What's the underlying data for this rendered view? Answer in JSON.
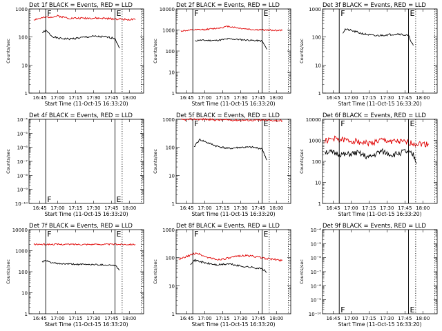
{
  "figure": {
    "xlabel": "Start Time (11-Oct-15 16:33:20)",
    "ylabel": "Counts/sec",
    "x_tick_labels": [
      "16:45",
      "17:00",
      "17:15",
      "17:30",
      "17:45",
      "18:00"
    ],
    "colors": {
      "events": "#000000",
      "lld": "#e00000"
    }
  },
  "chart_data": [
    {
      "type": "line",
      "title": "Det 1f BLACK = Events, RED = LLD",
      "xlabel": "Start Time (11-Oct-15 16:33:20)",
      "ylabel": "Counts/sec",
      "x_ticks": [
        "16:45",
        "17:00",
        "17:15",
        "17:30",
        "17:45",
        "18:00"
      ],
      "y_scale": "log",
      "ylim": [
        1,
        1000
      ],
      "y_tick_labels": [
        "1",
        "10",
        "100",
        "1000"
      ],
      "markers": [
        "F",
        "E"
      ],
      "series": [
        {
          "name": "Events",
          "color": "#000000",
          "x": [
            "16:47",
            "16:50",
            "16:55",
            "17:00",
            "17:10",
            "17:20",
            "17:30",
            "17:40",
            "17:48",
            "17:52"
          ],
          "y": [
            140,
            170,
            110,
            90,
            85,
            95,
            105,
            100,
            90,
            40
          ]
        },
        {
          "name": "LLD",
          "color": "#e00000",
          "x": [
            "16:40",
            "16:50",
            "17:00",
            "17:10",
            "17:20",
            "17:30",
            "17:40",
            "17:50",
            "18:00",
            "18:05"
          ],
          "y": [
            420,
            500,
            560,
            470,
            470,
            470,
            460,
            440,
            420,
            410
          ]
        }
      ]
    },
    {
      "type": "line",
      "title": "Det 2f BLACK = Events, RED = LLD",
      "xlabel": "Start Time (11-Oct-15 16:33:20)",
      "ylabel": "Counts/sec",
      "x_ticks": [
        "16:45",
        "17:00",
        "17:15",
        "17:30",
        "17:45",
        "18:00"
      ],
      "y_scale": "log",
      "ylim": [
        1,
        10000
      ],
      "y_tick_labels": [
        "1",
        "10",
        "100",
        "1000",
        "10000"
      ],
      "markers": [
        "F",
        "E"
      ],
      "series": [
        {
          "name": "Events",
          "color": "#000000",
          "x": [
            "16:52",
            "16:55",
            "17:00",
            "17:10",
            "17:20",
            "17:30",
            "17:40",
            "17:48",
            "17:52"
          ],
          "y": [
            300,
            330,
            320,
            320,
            380,
            350,
            320,
            300,
            120
          ]
        },
        {
          "name": "LLD",
          "color": "#e00000",
          "x": [
            "16:40",
            "16:50",
            "17:00",
            "17:10",
            "17:20",
            "17:30",
            "17:40",
            "17:50",
            "18:05"
          ],
          "y": [
            900,
            1000,
            1050,
            1200,
            1500,
            1200,
            1050,
            1000,
            950
          ]
        }
      ]
    },
    {
      "type": "line",
      "title": "Det 3f BLACK = Events, RED = LLD",
      "xlabel": "Start Time (11-Oct-15 16:33:20)",
      "ylabel": "Counts/sec",
      "x_ticks": [
        "16:45",
        "17:00",
        "17:15",
        "17:30",
        "17:45",
        "18:00"
      ],
      "y_scale": "log",
      "ylim": [
        1,
        1000
      ],
      "y_tick_labels": [
        "1",
        "10",
        "100",
        "1000"
      ],
      "markers": [
        "F",
        "E"
      ],
      "series": [
        {
          "name": "Events",
          "color": "#000000",
          "x": [
            "16:53",
            "16:55",
            "17:00",
            "17:10",
            "17:20",
            "17:30",
            "17:40",
            "17:48",
            "17:52"
          ],
          "y": [
            140,
            190,
            170,
            130,
            110,
            120,
            130,
            110,
            50
          ]
        }
      ]
    },
    {
      "type": "line",
      "title": "Det 4f BLACK = Events, RED = LLD",
      "xlabel": "Start Time (11-Oct-15 16:33:20)",
      "ylabel": "Counts/sec",
      "x_ticks": [
        "16:45",
        "17:00",
        "17:15",
        "17:30",
        "17:45",
        "18:00"
      ],
      "y_scale": "log",
      "ylim": [
        1e-10,
        0.0001
      ],
      "y_tick_labels": [
        "10⁻¹⁰",
        "10⁻⁹",
        "10⁻⁸",
        "10⁻⁷",
        "10⁻⁶",
        "10⁻⁵",
        "10⁻⁴"
      ],
      "markers": [
        "F",
        "E"
      ],
      "series": []
    },
    {
      "type": "line",
      "title": "Det 5f BLACK = Events, RED = LLD",
      "xlabel": "Start Time (11-Oct-15 16:33:20)",
      "ylabel": "Counts/sec",
      "x_ticks": [
        "16:45",
        "17:00",
        "17:15",
        "17:30",
        "17:45",
        "18:00"
      ],
      "y_scale": "log",
      "ylim": [
        1,
        1000
      ],
      "y_tick_labels": [
        "1",
        "10",
        "100",
        "1000"
      ],
      "markers": [
        "F",
        "E"
      ],
      "series": [
        {
          "name": "Events",
          "color": "#000000",
          "x": [
            "16:51",
            "16:53",
            "16:56",
            "17:00",
            "17:10",
            "17:20",
            "17:30",
            "17:40",
            "17:48",
            "17:52"
          ],
          "y": [
            100,
            140,
            190,
            160,
            110,
            90,
            100,
            100,
            90,
            35
          ]
        },
        {
          "name": "LLD",
          "color": "#e00000",
          "x": [
            "16:40",
            "16:50",
            "17:00",
            "17:10",
            "17:20",
            "17:30",
            "17:40",
            "17:50",
            "18:05"
          ],
          "y": [
            950,
            1000,
            1000,
            950,
            950,
            930,
            930,
            920,
            900
          ]
        }
      ]
    },
    {
      "type": "line",
      "title": "Det 6f BLACK = Events, RED = LLD",
      "xlabel": "Start Time (11-Oct-15 16:33:20)",
      "ylabel": "Counts/sec",
      "x_ticks": [
        "16:45",
        "17:00",
        "17:15",
        "17:30",
        "17:45",
        "18:00"
      ],
      "y_scale": "log",
      "ylim": [
        1,
        10000
      ],
      "y_tick_labels": [
        "1",
        "10",
        "100",
        "1000",
        "10000"
      ],
      "markers": [
        "F",
        "E"
      ],
      "series": [
        {
          "name": "Events",
          "color": "#000000",
          "x": [
            "16:38",
            "16:45",
            "16:55",
            "17:05",
            "17:15",
            "17:25",
            "17:35",
            "17:45",
            "17:52",
            "17:55"
          ],
          "y": [
            300,
            250,
            200,
            250,
            150,
            300,
            200,
            300,
            200,
            80
          ]
        },
        {
          "name": "LLD",
          "color": "#e00000",
          "x": [
            "16:38",
            "16:45",
            "16:55",
            "17:05",
            "17:15",
            "17:25",
            "17:35",
            "17:45",
            "17:55",
            "18:05"
          ],
          "y": [
            900,
            1200,
            1000,
            900,
            700,
            1000,
            900,
            800,
            700,
            650
          ]
        }
      ]
    },
    {
      "type": "line",
      "title": "Det 7f BLACK = Events, RED = LLD",
      "xlabel": "Start Time (11-Oct-15 16:33:20)",
      "ylabel": "Counts/sec",
      "x_ticks": [
        "16:45",
        "17:00",
        "17:15",
        "17:30",
        "17:45",
        "18:00"
      ],
      "y_scale": "log",
      "ylim": [
        1,
        10000
      ],
      "y_tick_labels": [
        "1",
        "10",
        "100",
        "1000",
        "10000"
      ],
      "markers": [
        "F",
        "E"
      ],
      "series": [
        {
          "name": "Events",
          "color": "#000000",
          "x": [
            "16:47",
            "16:50",
            "16:55",
            "17:00",
            "17:10",
            "17:20",
            "17:30",
            "17:40",
            "17:48",
            "17:52"
          ],
          "y": [
            300,
            330,
            270,
            240,
            230,
            220,
            220,
            210,
            200,
            120
          ]
        },
        {
          "name": "LLD",
          "color": "#e00000",
          "x": [
            "16:40",
            "16:50",
            "17:00",
            "17:10",
            "17:20",
            "17:30",
            "17:40",
            "17:50",
            "18:00",
            "18:05"
          ],
          "y": [
            2000,
            2000,
            2000,
            2000,
            2000,
            2000,
            2000,
            2000,
            2000,
            2000
          ]
        }
      ]
    },
    {
      "type": "line",
      "title": "Det 8f BLACK = Events, RED = LLD",
      "xlabel": "Start Time (11-Oct-15 16:33:20)",
      "ylabel": "Counts/sec",
      "x_ticks": [
        "16:45",
        "17:00",
        "17:15",
        "17:30",
        "17:45",
        "18:00"
      ],
      "y_scale": "log",
      "ylim": [
        1,
        1000
      ],
      "y_tick_labels": [
        "1",
        "10",
        "100",
        "1000"
      ],
      "markers": [
        "F",
        "E"
      ],
      "series": [
        {
          "name": "Events",
          "color": "#000000",
          "x": [
            "16:48",
            "16:50",
            "16:53",
            "17:00",
            "17:10",
            "17:20",
            "17:30",
            "17:40",
            "17:48",
            "17:52"
          ],
          "y": [
            60,
            75,
            80,
            65,
            55,
            60,
            50,
            45,
            40,
            30
          ]
        },
        {
          "name": "LLD",
          "color": "#e00000",
          "x": [
            "16:38",
            "16:45",
            "16:53",
            "17:00",
            "17:10",
            "17:20",
            "17:30",
            "17:40",
            "17:50",
            "18:05"
          ],
          "y": [
            85,
            110,
            150,
            110,
            85,
            95,
            120,
            115,
            95,
            80
          ]
        }
      ]
    },
    {
      "type": "line",
      "title": "Det 9f BLACK = Events, RED = LLD",
      "xlabel": "Start Time (11-Oct-15 16:33:20)",
      "ylabel": "Counts/sec",
      "x_ticks": [
        "16:45",
        "17:00",
        "17:15",
        "17:30",
        "17:45",
        "18:00"
      ],
      "y_scale": "log",
      "ylim": [
        1e-10,
        0.0001
      ],
      "y_tick_labels": [
        "10⁻¹⁰",
        "10⁻⁹",
        "10⁻⁸",
        "10⁻⁷",
        "10⁻⁶",
        "10⁻⁵",
        "10⁻⁴"
      ],
      "markers": [
        "F",
        "E"
      ],
      "series": []
    }
  ]
}
